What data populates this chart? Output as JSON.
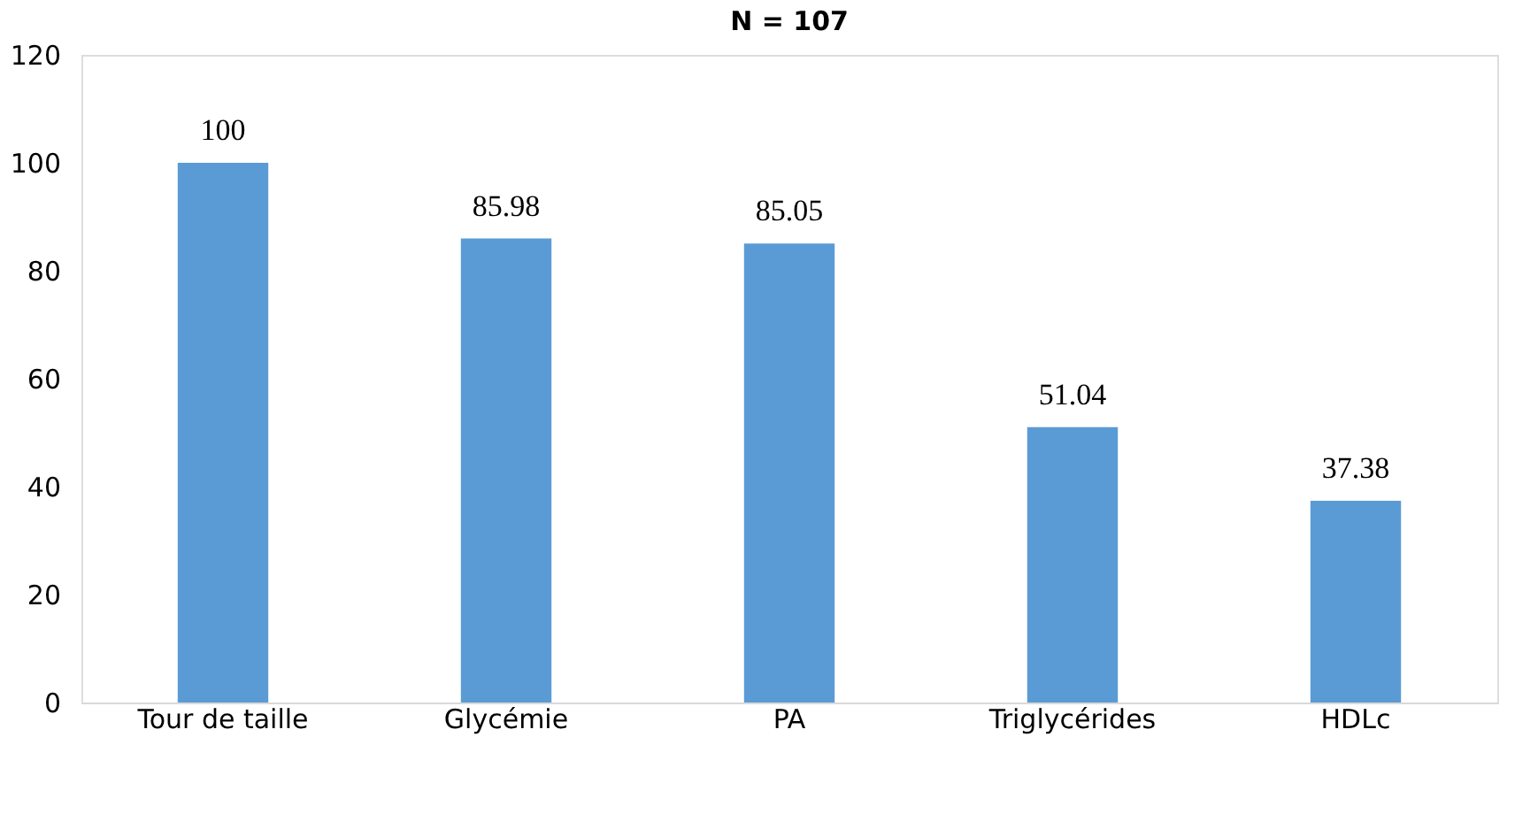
{
  "chart_data": {
    "type": "bar",
    "title": "N = 107",
    "categories": [
      "Tour de taille",
      "Glycémie",
      "PA",
      "Triglycérides",
      "HDLc"
    ],
    "values": [
      100,
      85.98,
      85.05,
      51.04,
      37.38
    ],
    "color": "#5b9bd5",
    "ylim": [
      0,
      120
    ],
    "yticks": [
      0,
      20,
      40,
      60,
      80,
      100,
      120
    ],
    "grid": false,
    "data_labels": true
  }
}
